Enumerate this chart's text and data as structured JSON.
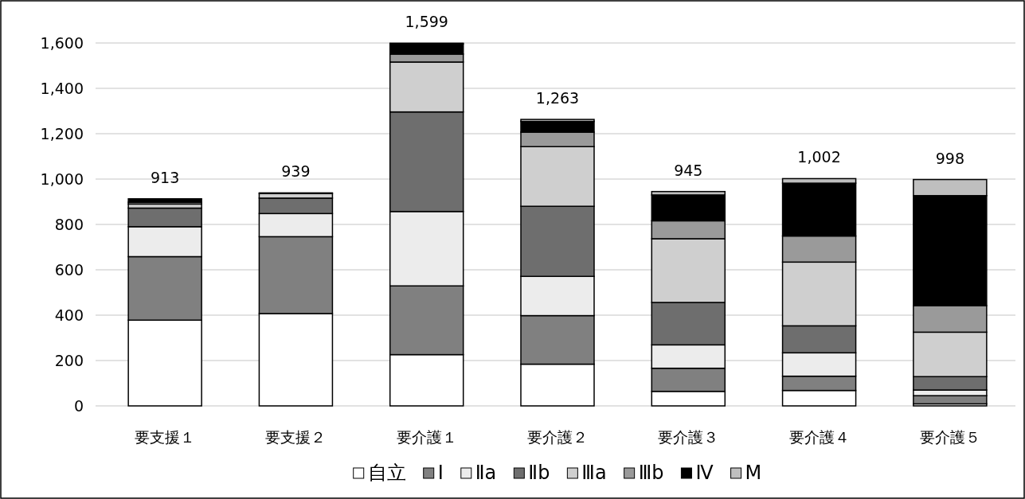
{
  "chart_data": {
    "type": "bar",
    "stacked": true,
    "categories": [
      "要支援１",
      "要支援２",
      "要介護１",
      "要介護２",
      "要介護３",
      "要介護４",
      "要介護５"
    ],
    "series": [
      {
        "name": "自立",
        "color": "#ffffff",
        "values": [
          378,
          407,
          226,
          184,
          64,
          68,
          9
        ]
      },
      {
        "name": "Ⅰ",
        "color": "#808080",
        "values": [
          280,
          339,
          303,
          214,
          102,
          63,
          36
        ]
      },
      {
        "name": "Ⅱa",
        "color": "#ececec",
        "values": [
          132,
          102,
          328,
          173,
          103,
          103,
          25
        ]
      },
      {
        "name": "Ⅱb",
        "color": "#6e6e6e",
        "values": [
          82,
          68,
          439,
          309,
          187,
          119,
          59
        ]
      },
      {
        "name": "Ⅲa",
        "color": "#cfcfcf",
        "values": [
          18,
          20,
          220,
          263,
          281,
          281,
          196
        ]
      },
      {
        "name": "Ⅲb",
        "color": "#9a9a9a",
        "values": [
          8,
          null,
          35,
          64,
          79,
          115,
          117
        ]
      },
      {
        "name": "Ⅳ",
        "color": "#000000",
        "values": [
          15,
          3,
          45,
          47,
          114,
          233,
          485
        ]
      },
      {
        "name": "M",
        "color": "#bfbfbf",
        "values": [
          0,
          0,
          3,
          9,
          15,
          20,
          71
        ]
      }
    ],
    "totals": [
      "913",
      "939",
      "1,599",
      "1,263",
      "945",
      "1,002",
      "998"
    ],
    "ylim": [
      0,
      1600
    ],
    "yticks": [
      0,
      200,
      400,
      600,
      800,
      {
        "value": 1000,
        "label": "1,000"
      },
      {
        "value": 1200,
        "label": "1,200"
      },
      {
        "value": 1400,
        "label": "1,400"
      },
      {
        "value": 1600,
        "label": "1,600"
      }
    ],
    "grid": "y",
    "legend": "bottom"
  }
}
